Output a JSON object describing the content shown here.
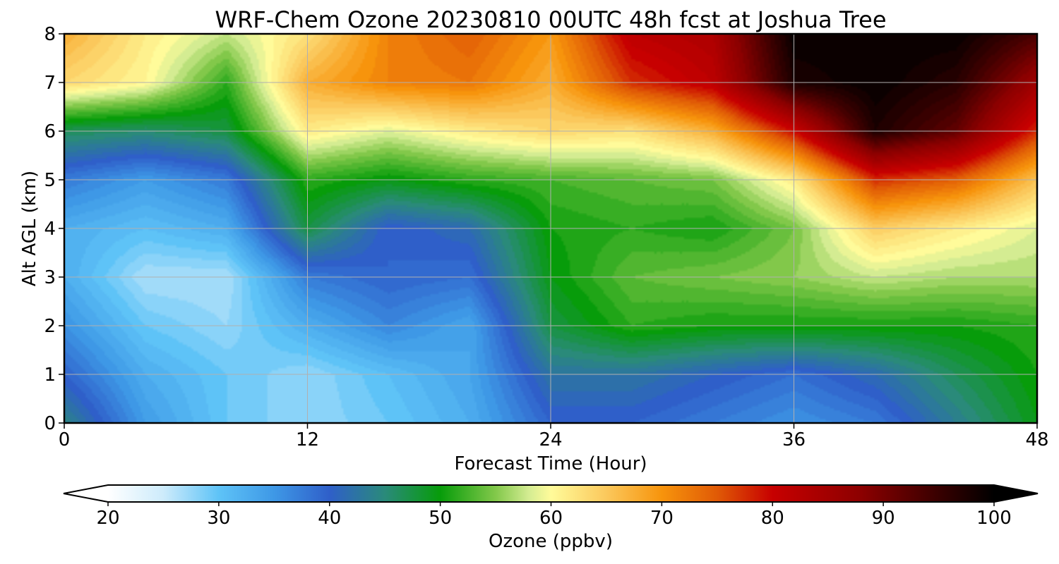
{
  "chart_data": {
    "type": "heatmap",
    "title": "WRF-Chem Ozone  20230810 00UTC 48h fcst at Joshua Tree",
    "xlabel": "Forecast Time (Hour)",
    "ylabel": "Alt AGL (km)",
    "xlim": [
      0,
      48
    ],
    "ylim": [
      0,
      8
    ],
    "xticks": [
      "0",
      "12",
      "24",
      "36",
      "48"
    ],
    "yticks": [
      "0",
      "1",
      "2",
      "3",
      "4",
      "5",
      "6",
      "7",
      "8"
    ],
    "grid": true,
    "x": [
      0,
      4,
      8,
      12,
      16,
      20,
      24,
      28,
      32,
      36,
      40,
      44,
      48
    ],
    "y": [
      0,
      1,
      2,
      3,
      4,
      5,
      6,
      7,
      8
    ],
    "z": [
      [
        45,
        35,
        30,
        28,
        30,
        33,
        40,
        40,
        38,
        36,
        38,
        44,
        50
      ],
      [
        40,
        33,
        30,
        28,
        31,
        34,
        43,
        43,
        41,
        39,
        42,
        47,
        51
      ],
      [
        36,
        30,
        28,
        33,
        37,
        34,
        48,
        52,
        51,
        51,
        51,
        51,
        52
      ],
      [
        33,
        27,
        27,
        38,
        40,
        39,
        50,
        54,
        55,
        56,
        58,
        57,
        57
      ],
      [
        33,
        31,
        33,
        48,
        40,
        42,
        51,
        52,
        51,
        55,
        65,
        62,
        59
      ],
      [
        38,
        35,
        38,
        52,
        50,
        52,
        53,
        54,
        55,
        62,
        78,
        75,
        66
      ],
      [
        47,
        46,
        48,
        62,
        59,
        62,
        64,
        63,
        68,
        80,
        98,
        92,
        78
      ],
      [
        64,
        61,
        52,
        68,
        72,
        73,
        68,
        78,
        82,
        98,
        100,
        97,
        86
      ],
      [
        68,
        62,
        58,
        63,
        72,
        75,
        70,
        82,
        84,
        100,
        100,
        100,
        94
      ]
    ],
    "colorbar": {
      "label": "Ozone  (ppbv)",
      "min": 20,
      "max": 100,
      "ticks": [
        "20",
        "30",
        "40",
        "50",
        "60",
        "70",
        "80",
        "90",
        "100"
      ],
      "extend": "both",
      "stops": [
        {
          "v": 20,
          "c": "#ffffff"
        },
        {
          "v": 25,
          "c": "#cdebfb"
        },
        {
          "v": 30,
          "c": "#5ec3f7"
        },
        {
          "v": 35,
          "c": "#3e98e6"
        },
        {
          "v": 40,
          "c": "#2f5fc9"
        },
        {
          "v": 45,
          "c": "#2a8a7a"
        },
        {
          "v": 50,
          "c": "#079c0a"
        },
        {
          "v": 55,
          "c": "#82c84a"
        },
        {
          "v": 58,
          "c": "#d4ec92"
        },
        {
          "v": 60,
          "c": "#fffb9a"
        },
        {
          "v": 65,
          "c": "#fbc85c"
        },
        {
          "v": 70,
          "c": "#f7940c"
        },
        {
          "v": 75,
          "c": "#e05a06"
        },
        {
          "v": 80,
          "c": "#c70000"
        },
        {
          "v": 88,
          "c": "#8c0000"
        },
        {
          "v": 95,
          "c": "#380000"
        },
        {
          "v": 100,
          "c": "#000000"
        }
      ]
    }
  }
}
